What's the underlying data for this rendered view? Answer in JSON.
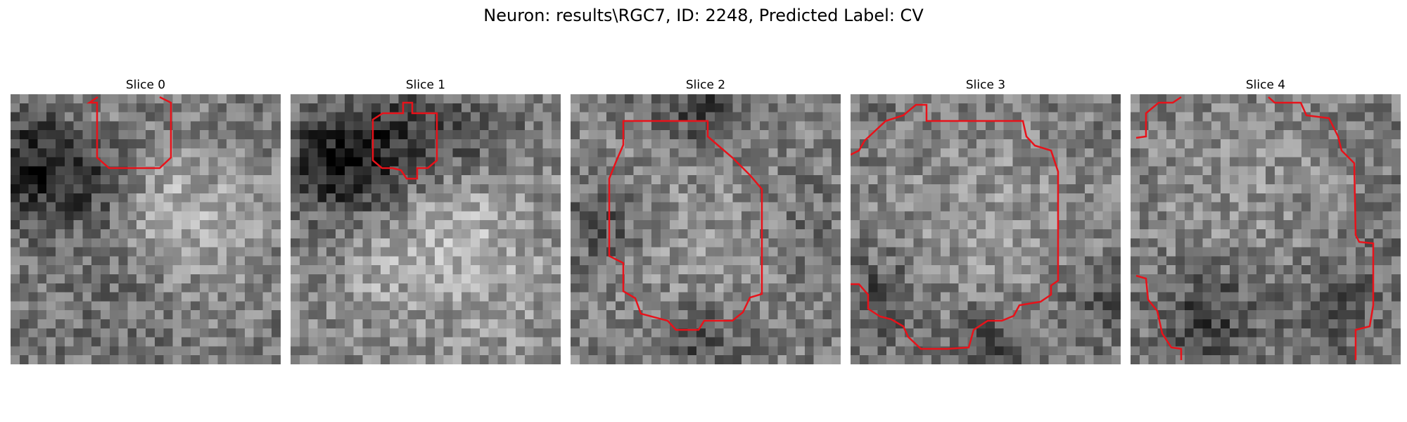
{
  "figure": {
    "title": "Neuron: results\\RGC7, ID: 2248, Predicted Label: CV"
  },
  "panels": [
    {
      "title": "Slice 0"
    },
    {
      "title": "Slice 1"
    },
    {
      "title": "Slice 2"
    },
    {
      "title": "Slice 3"
    },
    {
      "title": "Slice 4"
    }
  ],
  "colors": {
    "contour": "#e8121a",
    "background": "#ffffff",
    "image_colormap": "grayscale"
  }
}
